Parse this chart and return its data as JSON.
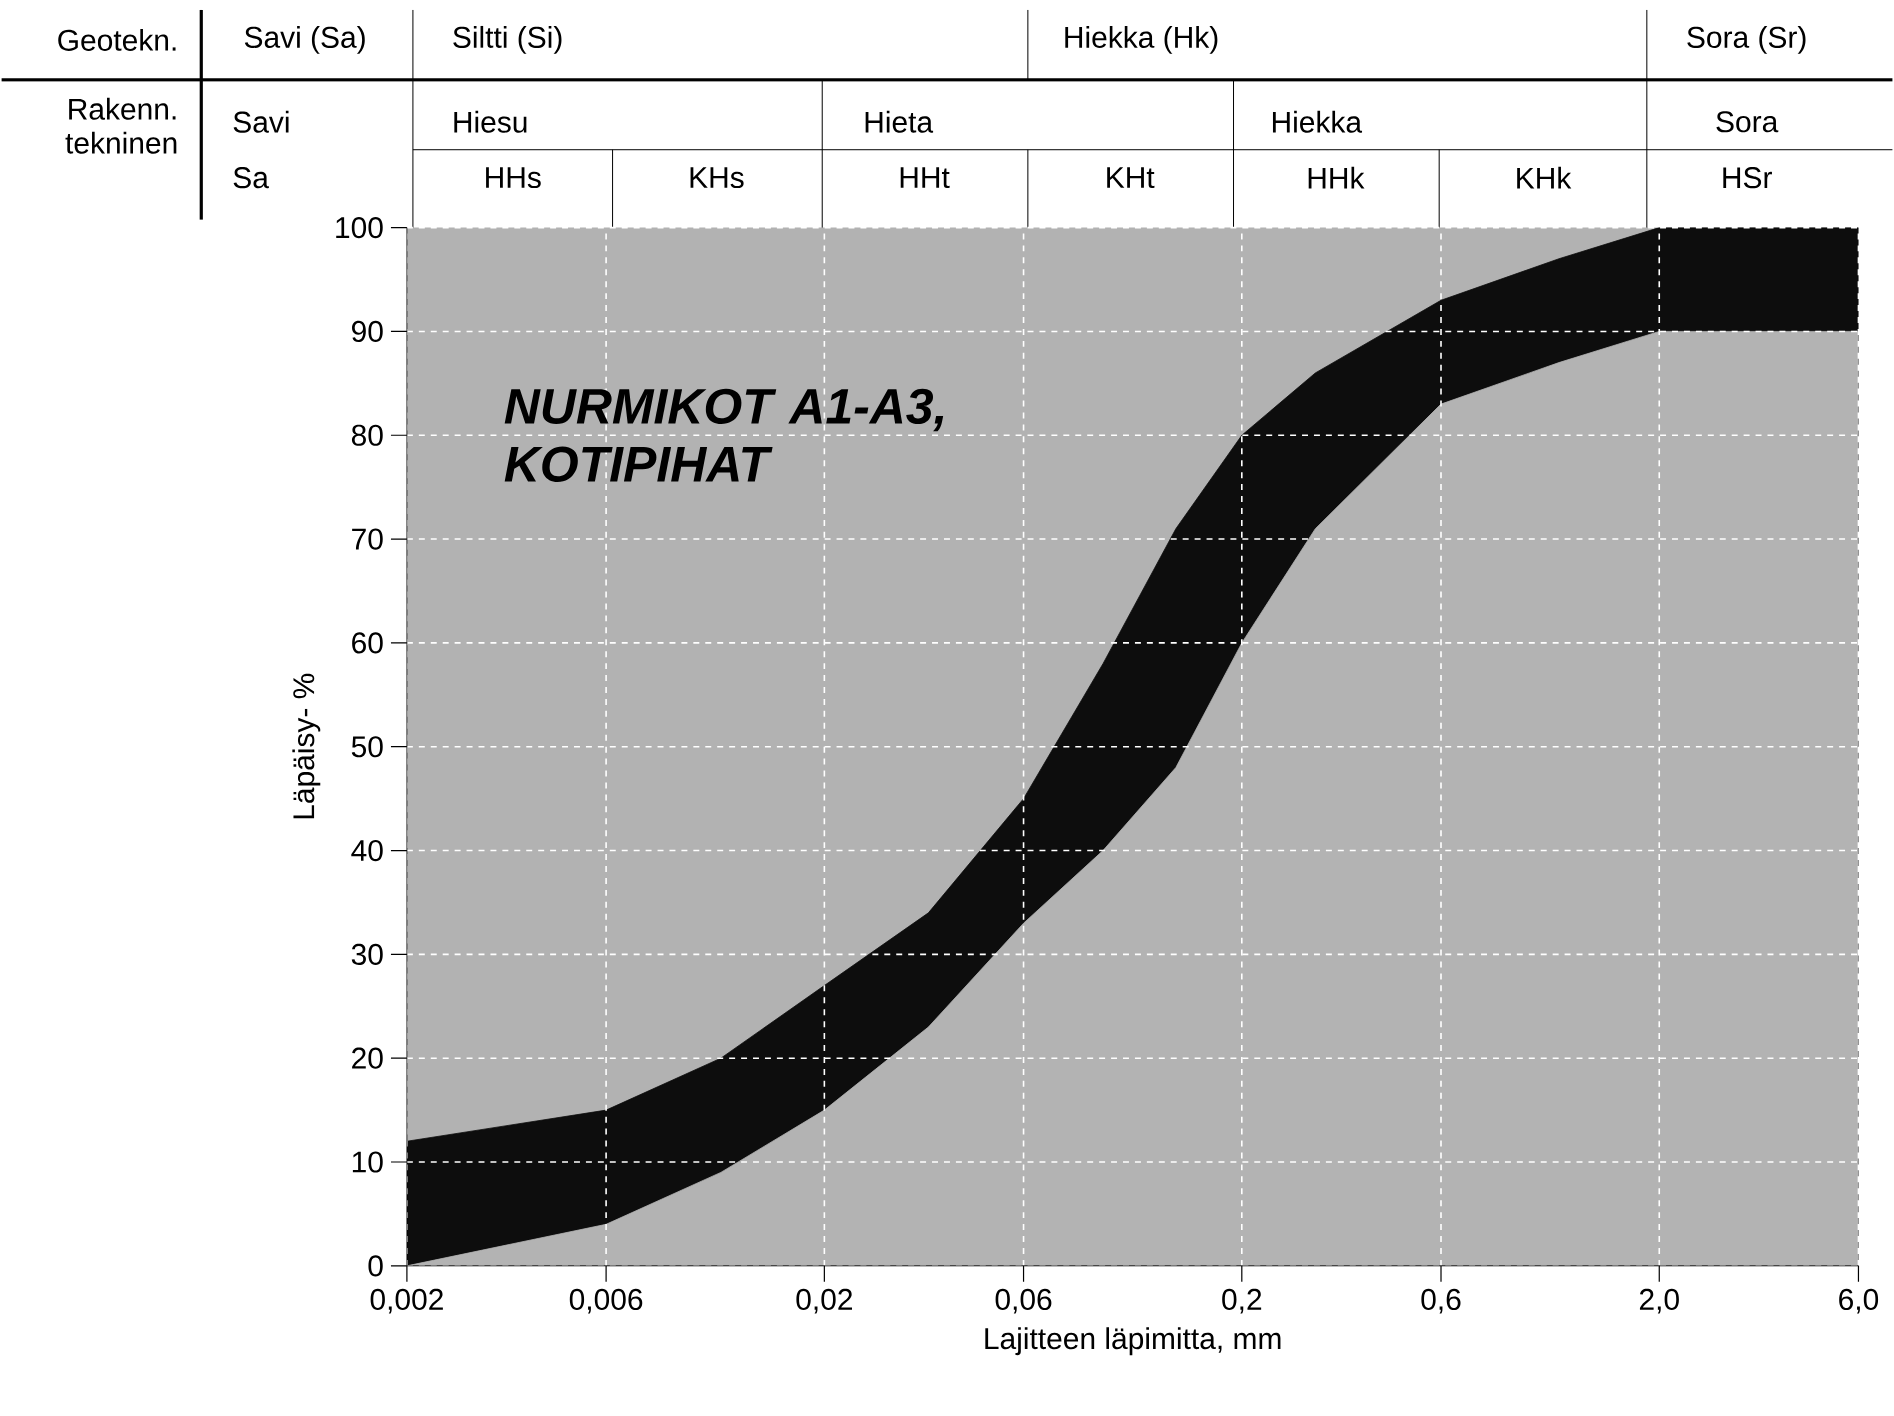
{
  "chart_data": {
    "type": "area",
    "xlabel": "Lajitteen läpimitta, mm",
    "ylabel": "Läpäisy- %",
    "log": "x",
    "grid": true,
    "xlim": [
      0.002,
      6.0
    ],
    "ylim": [
      0,
      100
    ],
    "xticks": [
      {
        "value": 0.002,
        "label": "0,002"
      },
      {
        "value": 0.006,
        "label": "0,006"
      },
      {
        "value": 0.02,
        "label": "0,02"
      },
      {
        "value": 0.06,
        "label": "0,06"
      },
      {
        "value": 0.2,
        "label": "0,2"
      },
      {
        "value": 0.6,
        "label": "0,6"
      },
      {
        "value": 2.0,
        "label": "2,0"
      },
      {
        "value": 6.0,
        "label": "6,0"
      }
    ],
    "yticks": [
      0,
      10,
      20,
      30,
      40,
      50,
      60,
      70,
      80,
      90,
      100
    ],
    "series": [
      {
        "color": "#0d0d0d",
        "x": [
          0.002,
          0.006,
          0.0113,
          0.02,
          0.0355,
          0.06,
          0.093,
          0.139,
          0.2,
          0.3,
          0.6,
          1.15,
          2.0,
          6.0
        ],
        "values": [
          12,
          15,
          20,
          27,
          34,
          45,
          58,
          71,
          80,
          86,
          93,
          97,
          100,
          100
        ]
      },
      {
        "color": "#b3b3b3",
        "x": [
          0.002,
          0.006,
          0.0113,
          0.02,
          0.0355,
          0.06,
          0.093,
          0.139,
          0.2,
          0.3,
          0.6,
          1.15,
          2.0,
          6.0
        ],
        "values": [
          0,
          4,
          9,
          15,
          23,
          33,
          40,
          48,
          60,
          71,
          83,
          87,
          90,
          90
        ]
      }
    ],
    "annotations": [
      "Geotekn.",
      "Savi (Sa)",
      "Siltti (Si)",
      "Hiekka (Hk)",
      "Sora (Sr)",
      "Rakenn. tekninen",
      "Savi",
      "Hiesu",
      "Hieta",
      "Hiekka",
      "Sora",
      "Sa",
      "HHs",
      "KHs",
      "HHt",
      "KHt",
      "HHk",
      "KHk",
      "HSr",
      "NURMIKOT  A1-A3, KOTIPIHAT"
    ]
  }
}
